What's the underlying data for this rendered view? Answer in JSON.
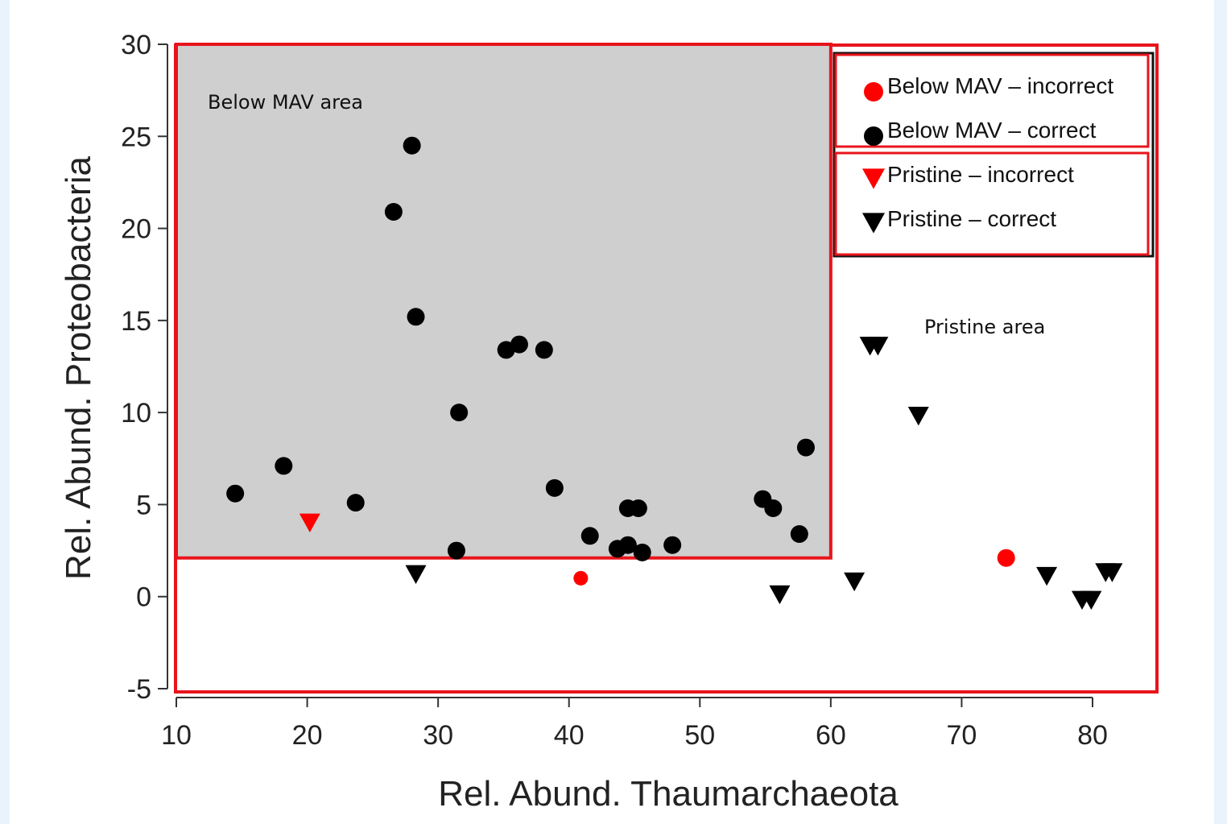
{
  "colors": {
    "page_bg": "#eaf3fb",
    "frame": "#e8141c",
    "mav_area": "#cfcfcf",
    "incorrect": "#ff0000",
    "correct": "#000000"
  },
  "chart_data": {
    "type": "scatter",
    "title": "",
    "xlabel": "Rel. Abund. Thaumarchaeota",
    "ylabel": "Rel. Abund. Proteobacteria",
    "xlim": [
      10,
      85
    ],
    "ylim": [
      -5,
      30
    ],
    "x_ticks": [
      "10",
      "20",
      "30",
      "40",
      "50",
      "60",
      "70",
      "80"
    ],
    "y_ticks": [
      "-5",
      "0",
      "5",
      "10",
      "15",
      "20",
      "25",
      "30"
    ],
    "grid": false,
    "legend_position": "top-right",
    "regions": [
      {
        "label": "Below MAV area",
        "x_range": [
          10,
          60
        ],
        "y_range": [
          2.1,
          30
        ],
        "fill": "#cfcfcf"
      },
      {
        "label": "Pristine area",
        "x_range": [
          10,
          85
        ],
        "y_range": [
          -5,
          30
        ]
      }
    ],
    "series": [
      {
        "name": "Below MAV – incorrect",
        "marker": "circle",
        "color": "#ff0000",
        "points": [
          [
            40.9,
            1.0
          ],
          [
            73.4,
            2.1
          ]
        ]
      },
      {
        "name": "Below MAV – correct",
        "marker": "circle",
        "color": "#000000",
        "points": [
          [
            14.5,
            5.6
          ],
          [
            18.2,
            7.1
          ],
          [
            23.7,
            5.1
          ],
          [
            26.6,
            20.9
          ],
          [
            28.0,
            24.5
          ],
          [
            28.3,
            15.2
          ],
          [
            31.4,
            2.5
          ],
          [
            31.6,
            10.0
          ],
          [
            35.2,
            13.4
          ],
          [
            36.2,
            13.7
          ],
          [
            38.1,
            13.4
          ],
          [
            38.9,
            5.9
          ],
          [
            41.6,
            3.3
          ],
          [
            43.7,
            2.6
          ],
          [
            44.5,
            4.8
          ],
          [
            44.5,
            2.8
          ],
          [
            45.3,
            4.8
          ],
          [
            45.6,
            2.4
          ],
          [
            47.9,
            2.8
          ],
          [
            54.8,
            5.3
          ],
          [
            55.6,
            4.8
          ],
          [
            57.6,
            3.4
          ],
          [
            58.1,
            8.1
          ]
        ]
      },
      {
        "name": "Pristine – incorrect",
        "marker": "triangle-down",
        "color": "#ff0000",
        "points": [
          [
            20.2,
            4.0
          ]
        ]
      },
      {
        "name": "Pristine – correct",
        "marker": "triangle-down",
        "color": "#000000",
        "points": [
          [
            28.3,
            1.2
          ],
          [
            56.1,
            0.1
          ],
          [
            61.8,
            0.8
          ],
          [
            63.0,
            13.6
          ],
          [
            63.6,
            13.6
          ],
          [
            66.7,
            9.8
          ],
          [
            76.5,
            1.1
          ],
          [
            79.2,
            -0.2
          ],
          [
            79.9,
            -0.2
          ],
          [
            81.0,
            1.3
          ],
          [
            81.5,
            1.3
          ]
        ]
      }
    ]
  }
}
